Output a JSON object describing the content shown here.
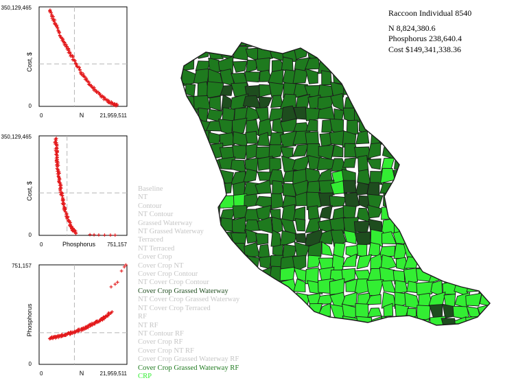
{
  "chart_data": [
    {
      "type": "scatter",
      "xlabel": "N",
      "ylabel": "Cost, $",
      "xlim": [
        0,
        21959511
      ],
      "ylim": [
        0,
        350129465
      ],
      "x_tick_labels": [
        "0",
        "21,959,511"
      ],
      "y_tick_labels": [
        "0",
        "350,129,465"
      ],
      "reference_lines": {
        "x": 8824380.6,
        "y": 149341338.36
      },
      "marker": "+",
      "color": "#e31a1c",
      "curve": {
        "x": [
          2600000,
          3500000,
          4500000,
          5500000,
          6600000,
          7700000,
          8800000,
          10000000,
          11300000,
          12600000,
          14000000,
          15500000,
          17000000,
          18500000,
          19500000
        ],
        "y": [
          338000000,
          308000000,
          276000000,
          245000000,
          215000000,
          188000000,
          160000000,
          132000000,
          104000000,
          79000000,
          56000000,
          36000000,
          20000000,
          9000000,
          3000000
        ]
      }
    },
    {
      "type": "scatter",
      "xlabel": "Phosphorus",
      "ylabel": "Cost, $",
      "xlim": [
        0,
        751157
      ],
      "ylim": [
        0,
        350129465
      ],
      "x_tick_labels": [
        "0",
        "751,157"
      ],
      "y_tick_labels": [
        "0",
        "350,129,465"
      ],
      "reference_lines": {
        "x": 238640.4,
        "y": 149341338.36
      },
      "marker": "+",
      "color": "#e31a1c",
      "curve": {
        "x": [
          140000,
          145000,
          150000,
          155000,
          162000,
          170000,
          180000,
          192000,
          205000,
          220000,
          238000,
          260000,
          285000,
          310000
        ],
        "y": [
          340000000,
          315000000,
          290000000,
          262000000,
          232000000,
          202000000,
          172000000,
          145000000,
          118000000,
          92000000,
          66000000,
          42000000,
          22000000,
          8000000
        ]
      },
      "outliers": [
        [
          435000,
          2500000
        ],
        [
          470000,
          2000000
        ],
        [
          510000,
          1500000
        ],
        [
          560000,
          1200000
        ],
        [
          610000,
          1000000
        ],
        [
          650000,
          800000
        ]
      ]
    },
    {
      "type": "scatter",
      "xlabel": "N",
      "ylabel": "Phosphorus",
      "xlim": [
        0,
        21959511
      ],
      "ylim": [
        0,
        751157
      ],
      "x_tick_labels": [
        "0",
        "21,959,511"
      ],
      "y_tick_labels": [
        "0",
        "751,157"
      ],
      "reference_lines": {
        "x": 8824380.6,
        "y": 238640.4
      },
      "marker": "+",
      "color": "#e31a1c",
      "curve": {
        "x": [
          2600000,
          4000000,
          5500000,
          7000000,
          8800000,
          10500000,
          12000000,
          13500000,
          15000000,
          16500000,
          18000000
        ],
        "y": [
          196000,
          205000,
          217000,
          229000,
          244000,
          262000,
          284000,
          306000,
          330000,
          355000,
          392000
        ]
      },
      "outliers": [
        [
          18000000,
          585000
        ],
        [
          19000000,
          605000
        ],
        [
          19600000,
          620000
        ],
        [
          20600000,
          705000
        ],
        [
          21300000,
          736000
        ],
        [
          21700000,
          751000
        ]
      ]
    }
  ],
  "legend": [
    {
      "label": "Baseline",
      "active": false
    },
    {
      "label": "NT",
      "active": false
    },
    {
      "label": "Contour",
      "active": false
    },
    {
      "label": "NT Contour",
      "active": false
    },
    {
      "label": "Grassed Waterway",
      "active": false
    },
    {
      "label": "NT Grassed Waterway",
      "active": false
    },
    {
      "label": "Terraced",
      "active": false
    },
    {
      "label": "NT Terraced",
      "active": false
    },
    {
      "label": "Cover Crop",
      "active": false
    },
    {
      "label": "Cover Crop NT",
      "active": false
    },
    {
      "label": "Cover Crop Contour",
      "active": false
    },
    {
      "label": "NT Cover Crop Contour",
      "active": false
    },
    {
      "label": "Cover Crop Grassed Waterway",
      "active": true,
      "color": "#1e4d1e"
    },
    {
      "label": "NT Cover Crop Grassed Waterway",
      "active": false
    },
    {
      "label": "NT Cover Crop Terraced",
      "active": false
    },
    {
      "label": "RF",
      "active": false
    },
    {
      "label": "NT RF",
      "active": false
    },
    {
      "label": "NT Contour RF",
      "active": false
    },
    {
      "label": "Cover Crop RF",
      "active": false
    },
    {
      "label": "Cover Crop NT RF",
      "active": false
    },
    {
      "label": "Cover Crop Grassed Waterway RF",
      "active": false
    },
    {
      "label": "Cover Crop Grassed Waterway RF",
      "active": true,
      "color": "#1e7a1e"
    },
    {
      "label": "CRP",
      "active": true,
      "color": "#33ee33"
    }
  ],
  "summary": {
    "title": "Raccoon Individual 8540",
    "n_line": "N 8,824,380.6",
    "p_line": "Phosphorus 238,640.4",
    "cost_line": "Cost $149,341,338.36"
  },
  "map_colors": {
    "dark": "#1e4d1e",
    "medium": "#1e7a1e",
    "light": "#33ee33",
    "border": "#1a1a1a"
  }
}
